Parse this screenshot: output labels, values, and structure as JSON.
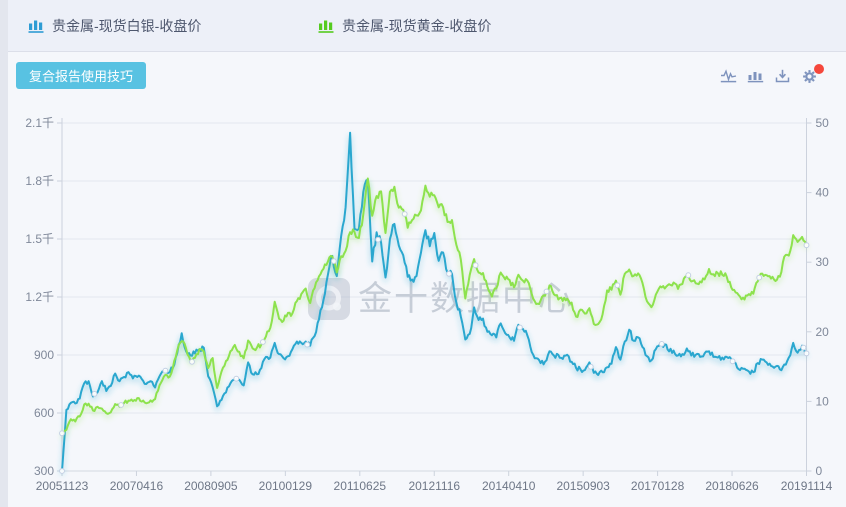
{
  "header": {
    "legends": [
      {
        "label": "贵金属-现货白银-收盘价",
        "color": "#2E9CD4",
        "icon": "bar-chart-icon"
      },
      {
        "label": "贵金属-现货黄金-收盘价",
        "color": "#55CB20",
        "icon": "bar-chart-icon"
      }
    ]
  },
  "panel": {
    "tips_button_label": "复合报告使用技巧",
    "tips_button_color": "#58C2E2",
    "toolbar": {
      "icons": [
        "line-chart-icon",
        "bar-chart-icon",
        "download-icon",
        "settings-gear-icon"
      ],
      "icon_color": "#7E93BD",
      "notification_dot_color": "#F5473C"
    }
  },
  "watermark": {
    "text": "金十数据中心",
    "icon": "jin10-logo-icon"
  },
  "chart_data": {
    "type": "line",
    "title": "",
    "legend_position": "top-outside",
    "grid": "horizontal-only",
    "x_start": "20051123",
    "x_end": "20191114",
    "x_tick_labels": [
      "20051123",
      "20070416",
      "20080905",
      "20100129",
      "20110625",
      "20121116",
      "20140410",
      "20150903",
      "20170128",
      "20180626",
      "20191114"
    ],
    "left_axis": {
      "title": "",
      "min": 300,
      "max": 2100,
      "tick_values": [
        2100,
        1800,
        1500,
        1200,
        900,
        600,
        300
      ],
      "tick_labels": [
        "2.1千",
        "1.8千",
        "1.5千",
        "1.2千",
        "900",
        "600",
        "300"
      ],
      "bound_series": "贵金属-现货黄金-收盘价"
    },
    "right_axis": {
      "title": "",
      "min": 0,
      "max": 50,
      "tick_values": [
        50,
        40,
        30,
        20,
        10,
        0
      ],
      "tick_labels": [
        "50",
        "40",
        "30",
        "20",
        "10",
        "0"
      ],
      "bound_series": "贵金属-现货白银-收盘价"
    },
    "series": [
      {
        "name": "贵金属-现货白银-收盘价",
        "axis": "right",
        "color": "#2BA7CF",
        "cadence": "monthly",
        "values": [
          0,
          8.8,
          9.8,
          9.7,
          10.4,
          12.6,
          12.9,
          10.7,
          11.3,
          12.9,
          11.5,
          12.2,
          14.0,
          12.9,
          13.5,
          14.2,
          13.3,
          13.5,
          13.2,
          12.5,
          12.9,
          12.0,
          13.6,
          14.3,
          14.1,
          14.8,
          16.9,
          19.8,
          17.2,
          16.6,
          16.9,
          17.5,
          17.7,
          13.6,
          12.0,
          9.3,
          10.2,
          11.3,
          12.6,
          13.1,
          13.1,
          12.3,
          15.6,
          13.9,
          13.9,
          14.8,
          16.4,
          16.3,
          18.4,
          16.8,
          16.2,
          16.5,
          17.5,
          18.6,
          18.4,
          18.6,
          18.0,
          19.4,
          21.8,
          24.6,
          28.2,
          30.9,
          28.0,
          33.8,
          37.9,
          48.6,
          34.8,
          34.8,
          40.1,
          41.8,
          30.1,
          34.3,
          32.8,
          27.8,
          33.3,
          35.5,
          32.4,
          31.0,
          27.9,
          27.5,
          28.0,
          31.4,
          34.6,
          32.3,
          34.2,
          30.2,
          31.4,
          28.5,
          28.3,
          24.2,
          22.2,
          18.9,
          19.7,
          23.5,
          21.7,
          21.9,
          20.0,
          19.5,
          19.2,
          21.2,
          19.8,
          19.2,
          18.7,
          21.0,
          20.4,
          19.5,
          17.1,
          16.2,
          15.5,
          15.7,
          17.2,
          16.6,
          16.7,
          16.1,
          16.7,
          15.7,
          14.8,
          14.6,
          14.5,
          15.6,
          14.1,
          13.8,
          14.2,
          14.9,
          15.4,
          17.8,
          16.0,
          18.6,
          20.3,
          18.7,
          19.2,
          17.8,
          16.5,
          15.9,
          17.5,
          18.3,
          18.2,
          17.2,
          17.3,
          16.6,
          16.8,
          17.6,
          16.6,
          16.7,
          16.4,
          16.9,
          17.2,
          16.4,
          16.3,
          16.3,
          16.4,
          16.1,
          15.5,
          14.5,
          14.7,
          14.3,
          14.2,
          15.5,
          16.0,
          15.6,
          15.1,
          15.0,
          14.6,
          15.3,
          16.3,
          18.4,
          17.0,
          18.0,
          16.9
        ]
      },
      {
        "name": "贵金属-现货黄金-收盘价",
        "axis": "left",
        "color": "#8DE24D",
        "cadence": "monthly",
        "values": [
          495,
          513,
          568,
          556,
          582,
          644,
          648,
          613,
          632,
          623,
          599,
          603,
          646,
          632,
          651,
          664,
          661,
          677,
          659,
          650,
          665,
          672,
          743,
          789,
          783,
          833,
          923,
          971,
          933,
          871,
          885,
          930,
          918,
          833,
          884,
          730,
          814,
          869,
          919,
          952,
          916,
          883,
          975,
          934,
          939,
          955,
          995,
          1040,
          1175,
          1087,
          1078,
          1118,
          1115,
          1179,
          1215,
          1244,
          1169,
          1246,
          1307,
          1346,
          1383,
          1410,
          1327,
          1411,
          1439,
          1535,
          1536,
          1505,
          1628,
          1813,
          1620,
          1722,
          1746,
          1531,
          1744,
          1770,
          1662,
          1651,
          1558,
          1598,
          1622,
          1648,
          1776,
          1719,
          1726,
          1664,
          1664,
          1588,
          1598,
          1469,
          1394,
          1192,
          1314,
          1396,
          1326,
          1324,
          1253,
          1202,
          1244,
          1326,
          1291,
          1288,
          1250,
          1315,
          1285,
          1285,
          1216,
          1164,
          1182,
          1206,
          1260,
          1214,
          1187,
          1180,
          1191,
          1171,
          1098,
          1135,
          1114,
          1142,
          1061,
          1060,
          1111,
          1234,
          1237,
          1285,
          1212,
          1320,
          1342,
          1309,
          1322,
          1272,
          1178,
          1147,
          1212,
          1255,
          1244,
          1266,
          1275,
          1242,
          1267,
          1311,
          1280,
          1271,
          1280,
          1291,
          1345,
          1318,
          1323,
          1315,
          1305,
          1250,
          1224,
          1202,
          1187,
          1215,
          1217,
          1281,
          1321,
          1313,
          1295,
          1283,
          1305,
          1409,
          1414,
          1520,
          1485,
          1511,
          1468
        ]
      }
    ]
  }
}
